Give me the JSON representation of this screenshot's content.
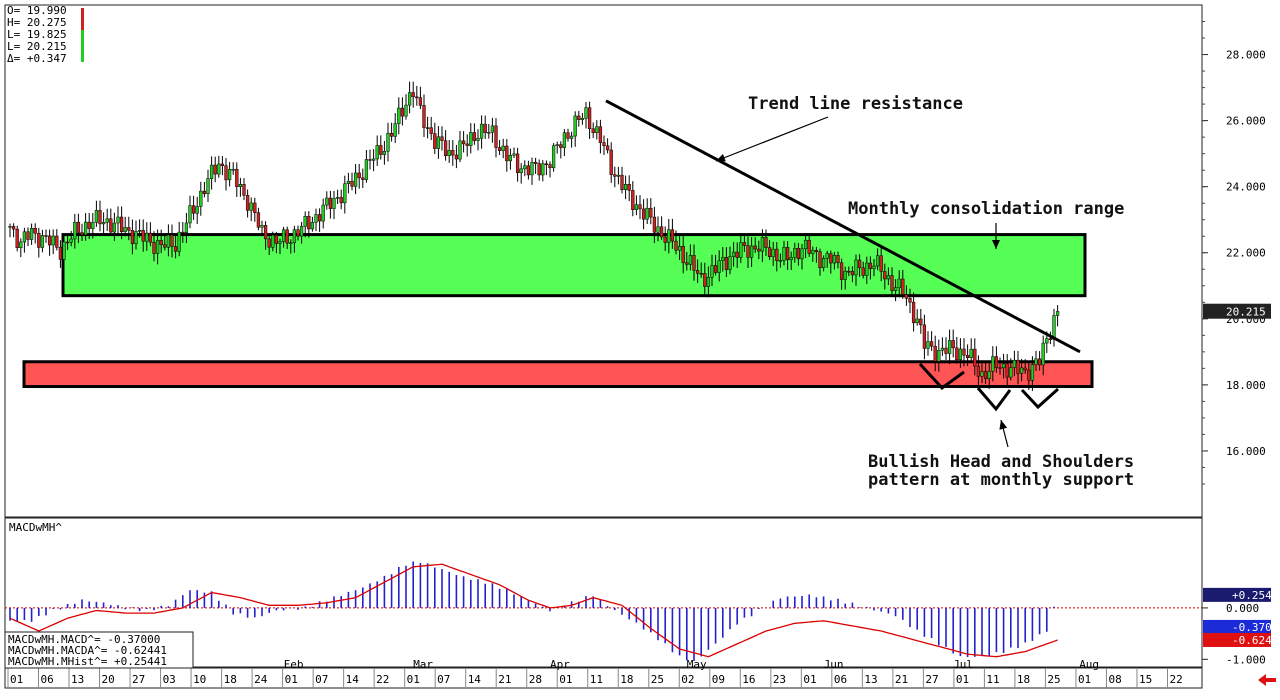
{
  "ohlc_readout": [
    "O= 19.990",
    "H= 20.275",
    "L= 19.825",
    "L= 20.215",
    "Δ= +0.347"
  ],
  "indicator_name": "MACDwMH^",
  "macd_legend": [
    "MACDwMH.MACD^=  -0.37000",
    "MACDwMH.MACDA^= -0.62441",
    "MACDwMH.MHist^= +0.25441"
  ],
  "annotations": {
    "trend": "Trend line resistance",
    "consolidation": "Monthly consolidation range",
    "hs_line1": "Bullish Head and Shoulders",
    "hs_line2": "pattern at monthly support"
  },
  "price_badge": "20.215",
  "macd_badges": [
    "+0.254",
    "-0.370",
    "-0.624"
  ],
  "colors": {
    "up": "#22cc22",
    "down": "#cc2222",
    "consolidation_box": "#55ff55",
    "support_box": "#ff5555",
    "histogram": "#2222cc",
    "signal": "#dd0000",
    "price_badge_bg": "#222222",
    "badge_blue": "#1c2bd8",
    "badge_red": "#e01010",
    "badge_navy": "#1a1a6e"
  },
  "chart_data": {
    "type": "candlestick",
    "ylim": [
      14.0,
      29.5
    ],
    "yticks": [
      "28.000",
      "26.000",
      "24.000",
      "22.000",
      "20.000",
      "18.000",
      "16.000"
    ],
    "macd_ylim": [
      -1.15,
      1.75
    ],
    "macd_yticks": [
      "0.000",
      "-1.000"
    ],
    "months": [
      "Feb",
      "Mar",
      "Apr",
      "May",
      "Jun",
      "Jul",
      "Aug"
    ],
    "date_ticks": [
      "01",
      "06",
      "13",
      "20",
      "27",
      "03",
      "10",
      "18",
      "24",
      "01",
      "07",
      "14",
      "22",
      "01",
      "07",
      "14",
      "21",
      "28",
      "01",
      "11",
      "18",
      "25",
      "02",
      "09",
      "16",
      "23",
      "01",
      "06",
      "13",
      "21",
      "27",
      "01",
      "11",
      "18",
      "25",
      "01",
      "08",
      "15",
      "22"
    ],
    "consolidation_range": [
      20.7,
      22.55
    ],
    "support_range": [
      17.95,
      18.7
    ],
    "trendline": [
      [
        0,
        26.6
      ],
      [
        1,
        19.0
      ]
    ],
    "macd_legend_values": {
      "MACD": -0.37,
      "MACDA": -0.62441,
      "MHist": 0.25441
    },
    "anchors": [
      [
        0,
        22.8
      ],
      [
        3,
        22.3
      ],
      [
        6,
        22.6
      ],
      [
        10,
        22.4
      ],
      [
        14,
        22.1
      ],
      [
        18,
        22.6
      ],
      [
        22,
        22.9
      ],
      [
        26,
        23.0
      ],
      [
        30,
        22.8
      ],
      [
        34,
        22.6
      ],
      [
        38,
        22.4
      ],
      [
        42,
        22.2
      ],
      [
        46,
        22.3
      ],
      [
        50,
        23.1
      ],
      [
        54,
        24.0
      ],
      [
        58,
        24.7
      ],
      [
        62,
        24.3
      ],
      [
        66,
        23.6
      ],
      [
        70,
        22.6
      ],
      [
        74,
        22.3
      ],
      [
        78,
        22.5
      ],
      [
        82,
        22.8
      ],
      [
        86,
        23.2
      ],
      [
        90,
        23.6
      ],
      [
        94,
        24.0
      ],
      [
        98,
        24.5
      ],
      [
        102,
        25.0
      ],
      [
        106,
        25.6
      ],
      [
        110,
        26.6
      ],
      [
        112,
        26.9
      ],
      [
        114,
        26.2
      ],
      [
        118,
        25.4
      ],
      [
        122,
        25.0
      ],
      [
        126,
        25.2
      ],
      [
        130,
        25.7
      ],
      [
        134,
        25.6
      ],
      [
        138,
        24.9
      ],
      [
        142,
        24.6
      ],
      [
        146,
        24.5
      ],
      [
        150,
        24.8
      ],
      [
        154,
        25.5
      ],
      [
        158,
        26.0
      ],
      [
        160,
        26.2
      ],
      [
        164,
        25.4
      ],
      [
        168,
        24.4
      ],
      [
        172,
        23.7
      ],
      [
        176,
        23.2
      ],
      [
        180,
        22.7
      ],
      [
        184,
        22.3
      ],
      [
        188,
        21.8
      ],
      [
        192,
        21.2
      ],
      [
        196,
        21.5
      ],
      [
        200,
        21.9
      ],
      [
        204,
        22.1
      ],
      [
        208,
        22.2
      ],
      [
        212,
        22.0
      ],
      [
        216,
        21.8
      ],
      [
        220,
        22.2
      ],
      [
        224,
        21.9
      ],
      [
        228,
        21.8
      ],
      [
        232,
        21.4
      ],
      [
        236,
        21.5
      ],
      [
        240,
        21.7
      ],
      [
        244,
        21.2
      ],
      [
        248,
        20.8
      ],
      [
        252,
        20.0
      ],
      [
        254,
        19.2
      ],
      [
        258,
        19.0
      ],
      [
        262,
        19.1
      ],
      [
        266,
        18.9
      ],
      [
        270,
        18.3
      ],
      [
        274,
        18.6
      ],
      [
        278,
        18.5
      ],
      [
        282,
        18.4
      ],
      [
        286,
        18.7
      ],
      [
        288,
        19.4
      ],
      [
        290,
        20.0
      ],
      [
        291,
        20.2
      ]
    ],
    "macd_hist_anchors": [
      [
        0,
        -0.25
      ],
      [
        6,
        -0.25
      ],
      [
        12,
        -0.05
      ],
      [
        20,
        0.15
      ],
      [
        26,
        0.1
      ],
      [
        32,
        0.0
      ],
      [
        38,
        -0.05
      ],
      [
        44,
        0.05
      ],
      [
        50,
        0.35
      ],
      [
        56,
        0.3
      ],
      [
        62,
        -0.1
      ],
      [
        68,
        -0.2
      ],
      [
        74,
        -0.05
      ],
      [
        82,
        0.0
      ],
      [
        90,
        0.2
      ],
      [
        98,
        0.4
      ],
      [
        104,
        0.6
      ],
      [
        110,
        0.85
      ],
      [
        114,
        0.9
      ],
      [
        120,
        0.75
      ],
      [
        126,
        0.6
      ],
      [
        132,
        0.5
      ],
      [
        138,
        0.35
      ],
      [
        144,
        0.15
      ],
      [
        150,
        -0.05
      ],
      [
        156,
        0.1
      ],
      [
        162,
        0.25
      ],
      [
        168,
        -0.05
      ],
      [
        174,
        -0.3
      ],
      [
        180,
        -0.6
      ],
      [
        186,
        -0.95
      ],
      [
        190,
        -1.05
      ],
      [
        196,
        -0.7
      ],
      [
        202,
        -0.3
      ],
      [
        208,
        -0.05
      ],
      [
        214,
        0.2
      ],
      [
        222,
        0.25
      ],
      [
        230,
        0.15
      ],
      [
        238,
        0.0
      ],
      [
        246,
        -0.15
      ],
      [
        252,
        -0.45
      ],
      [
        258,
        -0.7
      ],
      [
        264,
        -0.95
      ],
      [
        270,
        -0.95
      ],
      [
        276,
        -0.85
      ],
      [
        282,
        -0.7
      ],
      [
        288,
        -0.45
      ],
      [
        291,
        0.25
      ]
    ],
    "macd_signal_anchors": [
      [
        0,
        -0.2
      ],
      [
        8,
        -0.45
      ],
      [
        16,
        -0.2
      ],
      [
        24,
        -0.05
      ],
      [
        32,
        -0.1
      ],
      [
        40,
        -0.1
      ],
      [
        48,
        0.0
      ],
      [
        56,
        0.3
      ],
      [
        64,
        0.2
      ],
      [
        72,
        0.05
      ],
      [
        80,
        0.05
      ],
      [
        88,
        0.1
      ],
      [
        96,
        0.2
      ],
      [
        104,
        0.5
      ],
      [
        112,
        0.8
      ],
      [
        120,
        0.85
      ],
      [
        128,
        0.65
      ],
      [
        136,
        0.45
      ],
      [
        144,
        0.15
      ],
      [
        150,
        0.0
      ],
      [
        156,
        0.05
      ],
      [
        162,
        0.2
      ],
      [
        170,
        0.05
      ],
      [
        178,
        -0.4
      ],
      [
        186,
        -0.8
      ],
      [
        194,
        -0.95
      ],
      [
        202,
        -0.7
      ],
      [
        210,
        -0.45
      ],
      [
        218,
        -0.3
      ],
      [
        226,
        -0.25
      ],
      [
        234,
        -0.35
      ],
      [
        242,
        -0.45
      ],
      [
        250,
        -0.6
      ],
      [
        258,
        -0.75
      ],
      [
        266,
        -0.9
      ],
      [
        274,
        -0.95
      ],
      [
        282,
        -0.85
      ],
      [
        288,
        -0.7
      ],
      [
        291,
        -0.624
      ]
    ]
  }
}
